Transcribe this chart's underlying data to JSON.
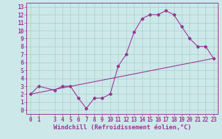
{
  "xlabel": "Windchill (Refroidissement éolien,°C)",
  "bg_color": "#cce8e8",
  "line_color": "#993399",
  "xlim": [
    -0.5,
    23.5
  ],
  "ylim": [
    -0.5,
    13.5
  ],
  "xticks": [
    0,
    1,
    3,
    4,
    5,
    6,
    7,
    8,
    9,
    10,
    11,
    12,
    13,
    14,
    15,
    16,
    17,
    18,
    19,
    20,
    21,
    22,
    23
  ],
  "yticks": [
    0,
    1,
    2,
    3,
    4,
    5,
    6,
    7,
    8,
    9,
    10,
    11,
    12,
    13
  ],
  "line1_x": [
    0,
    1,
    3,
    4,
    5,
    6,
    7,
    8,
    9,
    10,
    11,
    12,
    13,
    14,
    15,
    16,
    17,
    18,
    19,
    20,
    21,
    22,
    23
  ],
  "line1_y": [
    2,
    3,
    2.5,
    3,
    3,
    1.5,
    0.2,
    1.5,
    1.5,
    2,
    5.5,
    7,
    9.8,
    11.5,
    12,
    12,
    12.5,
    12,
    10.5,
    9,
    8,
    8,
    6.5
  ],
  "line2_x": [
    0,
    23
  ],
  "line2_y": [
    2,
    6.5
  ],
  "grid_color": "#aacccc",
  "tick_fontsize": 5.5,
  "xlabel_fontsize": 6.5
}
